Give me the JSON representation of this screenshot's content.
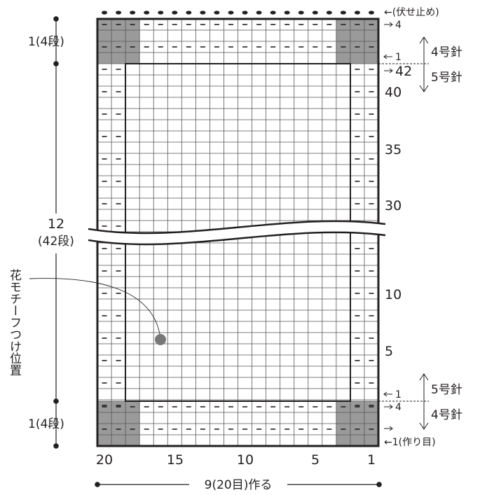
{
  "colors": {
    "ink": "#231f20",
    "shade": "#9a9a9a",
    "grid": "#555555",
    "paper": "#ffffff"
  },
  "labels": {
    "top_height": "1(4段)",
    "bottom_height": "1(4段)",
    "body_height": "12",
    "body_rows": "(42段)",
    "motif": "花モチーフつけ位置",
    "bind_off": "←(伏せ止め)",
    "cast_on": "←1(作り目)",
    "width": "9(20目)作る",
    "needle_top_upper": "4号針",
    "needle_top_lower": "5号針",
    "needle_bottom_upper": "5号針",
    "needle_bottom_lower": "4号針"
  },
  "row_numbers": {
    "top_4": "4",
    "top_1": "1",
    "top_42": "42",
    "r40": "40",
    "r35": "35",
    "r30": "30",
    "r10": "10",
    "r5": "5",
    "bottom_1": "1",
    "bottom_4": "4"
  },
  "stitch_numbers": {
    "s20": "20",
    "s15": "15",
    "s10": "10",
    "s5": "5",
    "s1": "1"
  },
  "grid": {
    "stitches": 20,
    "border_stitches": 2,
    "border_rows": 4,
    "body_rows": 42
  }
}
